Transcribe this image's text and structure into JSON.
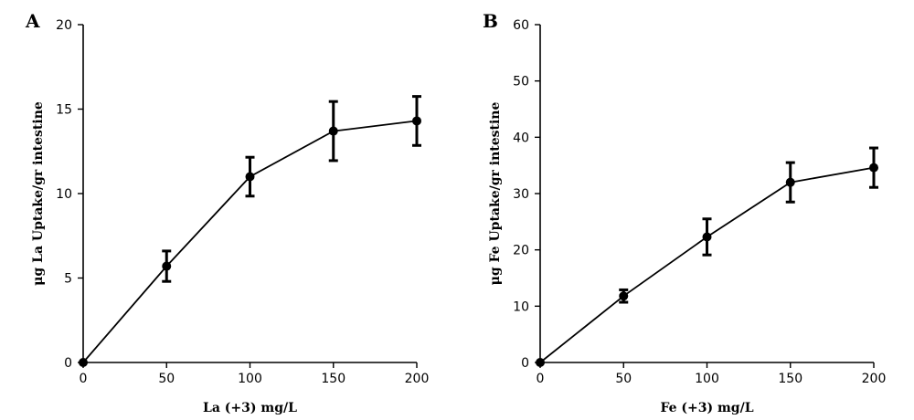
{
  "chart_data": [
    {
      "type": "line",
      "panel": "A",
      "title": "",
      "xlabel": "La (+3) mg/L",
      "ylabel": "μg La Uptake/gr intestine",
      "x": [
        0,
        50,
        100,
        150,
        200
      ],
      "series": [
        {
          "values": [
            0,
            5.7,
            11.0,
            13.7,
            14.3
          ],
          "error": [
            0,
            0.9,
            1.15,
            1.75,
            1.45
          ]
        }
      ],
      "xlim": [
        0,
        200
      ],
      "ylim": [
        0,
        20
      ],
      "xticks": [
        "0",
        "50",
        "100",
        "150",
        "200"
      ],
      "yticks": [
        "0",
        "5",
        "10",
        "15",
        "20"
      ],
      "grid": false,
      "marker": "circle"
    },
    {
      "type": "line",
      "panel": "B",
      "title": "",
      "xlabel": "Fe (+3) mg/L",
      "ylabel": "μg Fe Uptake/gr intestine",
      "x": [
        0,
        50,
        100,
        150,
        200
      ],
      "series": [
        {
          "values": [
            0,
            11.8,
            22.3,
            32.0,
            34.6
          ],
          "error": [
            0,
            1.1,
            3.2,
            3.5,
            3.5
          ]
        }
      ],
      "xlim": [
        0,
        200
      ],
      "ylim": [
        0,
        60
      ],
      "xticks": [
        "0",
        "50",
        "100",
        "150",
        "200"
      ],
      "yticks": [
        "0",
        "10",
        "20",
        "30",
        "40",
        "50",
        "60"
      ],
      "grid": false,
      "marker": "circle"
    }
  ]
}
